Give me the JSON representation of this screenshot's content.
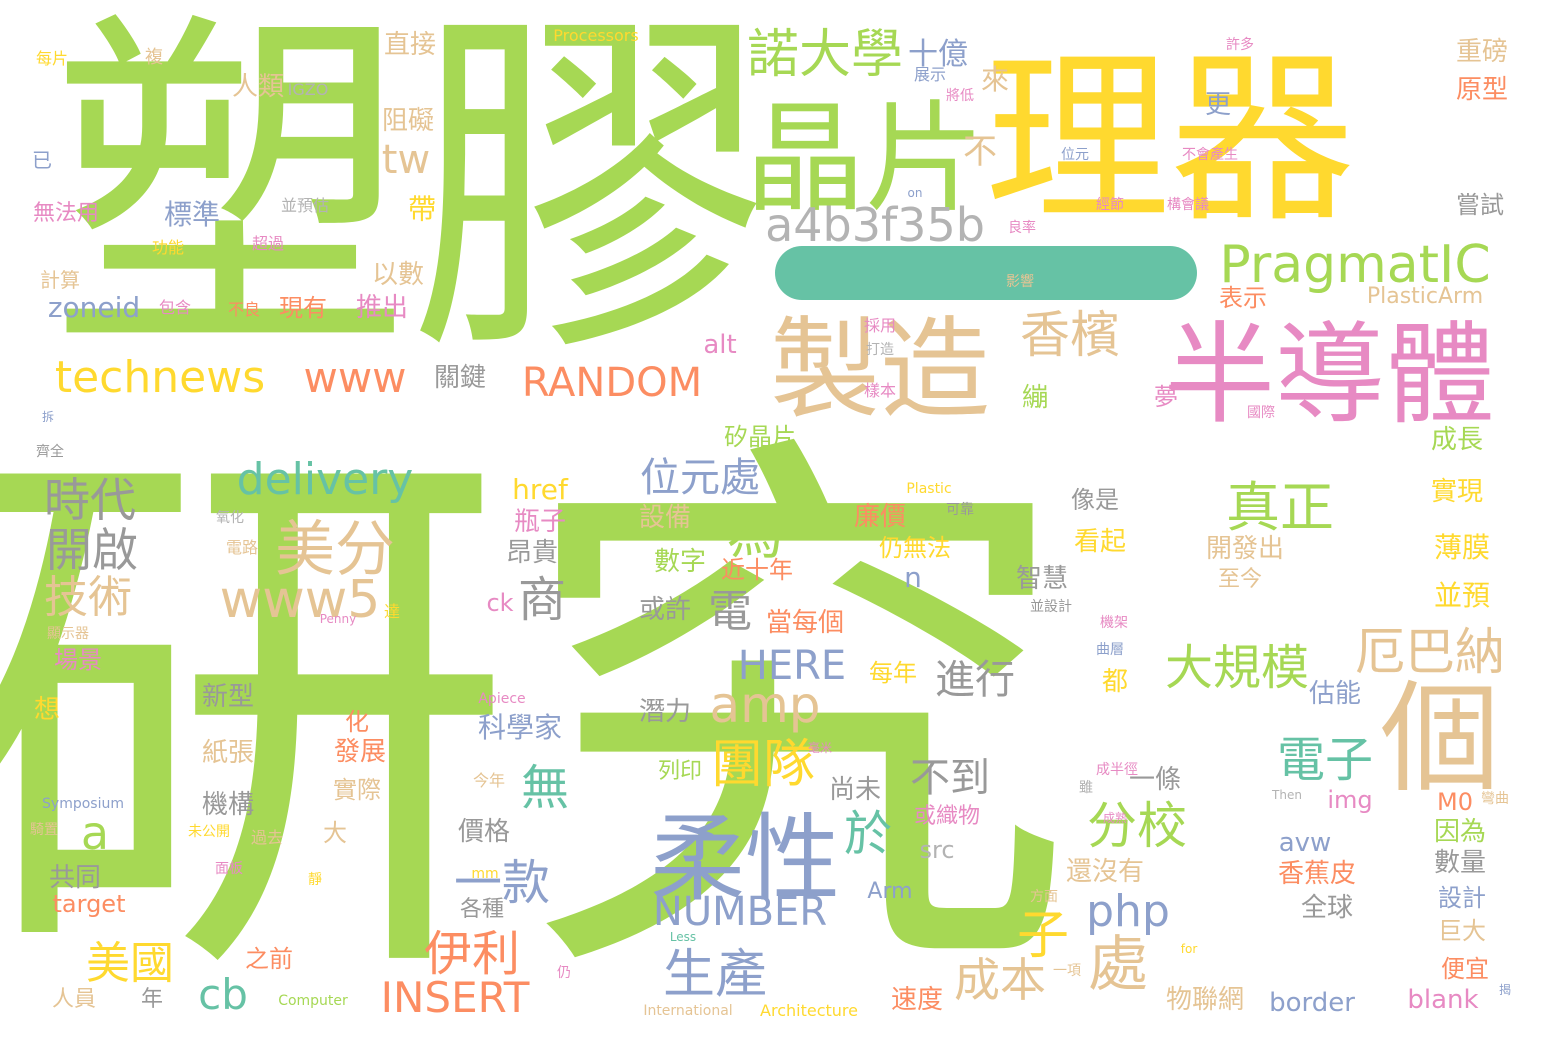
{
  "colors": {
    "background": "#ffffff",
    "palette": [
      "#a6d854",
      "#ffd92f",
      "#e5c494",
      "#e78ac3",
      "#8da0cb",
      "#66c2a5",
      "#fc8d62",
      "#b3b3b3",
      "#999999"
    ]
  },
  "words": [
    {
      "text": "研究",
      "color": "#a6d854"
    },
    {
      "text": "塑膠",
      "color": "#a6d854"
    },
    {
      "text": "理器",
      "color": "#ffd92f"
    },
    {
      "text": "晶片",
      "color": "#a6d854"
    },
    {
      "text": "半導體",
      "color": "#e78ac3"
    },
    {
      "text": "製造",
      "color": "#e5c494"
    },
    {
      "text": "柔性",
      "color": "#8da0cb"
    },
    {
      "text": "個",
      "color": "#e5c494"
    },
    {
      "text": "a4b3f35b",
      "color": "#b3b3b3"
    },
    {
      "text": "PragmatIC",
      "color": "#a6d854"
    },
    {
      "text": "諾大學",
      "color": "#a6d854"
    },
    {
      "text": "technews",
      "color": "#ffd92f"
    },
    {
      "text": "www",
      "color": "#fc8d62"
    },
    {
      "text": "RANDOM",
      "color": "#fc8d62"
    },
    {
      "text": "香檳",
      "color": "#e5c494"
    },
    {
      "text": "delivery",
      "color": "#66c2a5"
    },
    {
      "text": "美分",
      "color": "#e5c494"
    },
    {
      "text": "www5",
      "color": "#e5c494"
    },
    {
      "text": "時代",
      "color": "#999999"
    },
    {
      "text": "開啟",
      "color": "#999999"
    },
    {
      "text": "技術",
      "color": "#e5c494"
    },
    {
      "text": "位元處",
      "color": "#8da0cb"
    },
    {
      "text": "為",
      "color": "#a6d854"
    },
    {
      "text": "商",
      "color": "#999999"
    },
    {
      "text": "電",
      "color": "#999999"
    },
    {
      "text": "amp",
      "color": "#e5c494"
    },
    {
      "text": "真正",
      "color": "#a6d854"
    },
    {
      "text": "厄巴納",
      "color": "#e5c494"
    },
    {
      "text": "大規模",
      "color": "#a6d854"
    },
    {
      "text": "團隊",
      "color": "#ffd92f"
    },
    {
      "text": "HERE",
      "color": "#8da0cb"
    },
    {
      "text": "進行",
      "color": "#999999"
    },
    {
      "text": "不到",
      "color": "#999999"
    },
    {
      "text": "電子",
      "color": "#66c2a5"
    },
    {
      "text": "分校",
      "color": "#a6d854"
    },
    {
      "text": "於",
      "color": "#66c2a5"
    },
    {
      "text": "一款",
      "color": "#8da0cb"
    },
    {
      "text": "無",
      "color": "#66c2a5"
    },
    {
      "text": "a",
      "color": "#a6d854"
    },
    {
      "text": "NUMBER",
      "color": "#8da0cb"
    },
    {
      "text": "php",
      "color": "#8da0cb"
    },
    {
      "text": "處",
      "color": "#e5c494"
    },
    {
      "text": "子",
      "color": "#ffd92f"
    },
    {
      "text": "伊利",
      "color": "#fc8d62"
    },
    {
      "text": "生產",
      "color": "#8da0cb"
    },
    {
      "text": "INSERT",
      "color": "#fc8d62"
    },
    {
      "text": "美國",
      "color": "#ffd92f"
    },
    {
      "text": "cb",
      "color": "#66c2a5"
    },
    {
      "text": "成本",
      "color": "#e5c494"
    },
    {
      "text": "tw",
      "color": "#e5c494"
    },
    {
      "text": "不",
      "color": "#e5c494"
    },
    {
      "text": "zoneid",
      "color": "#8da0cb"
    },
    {
      "text": "十億",
      "color": "#8da0cb"
    },
    {
      "text": "標準",
      "color": "#8da0cb"
    },
    {
      "text": "人類",
      "color": "#e5c494"
    },
    {
      "text": "阻礙",
      "color": "#e5c494"
    },
    {
      "text": "直接",
      "color": "#e5c494"
    },
    {
      "text": "來",
      "color": "#e5c494"
    },
    {
      "text": "更",
      "color": "#8da0cb"
    },
    {
      "text": "以數",
      "color": "#e5c494"
    },
    {
      "text": "帶",
      "color": "#ffd92f"
    },
    {
      "text": "推出",
      "color": "#e78ac3"
    },
    {
      "text": "現有",
      "color": "#fc8d62"
    },
    {
      "text": "重磅",
      "color": "#e5c494"
    },
    {
      "text": "原型",
      "color": "#fc8d62"
    },
    {
      "text": "嘗試",
      "color": "#999999"
    },
    {
      "text": "表示",
      "color": "#fc8d62"
    },
    {
      "text": "PlasticArm",
      "color": "#e5c494"
    },
    {
      "text": "alt",
      "color": "#e78ac3"
    },
    {
      "text": "關鍵",
      "color": "#999999"
    },
    {
      "text": "繃",
      "color": "#a6d854"
    },
    {
      "text": "夢",
      "color": "#e78ac3"
    },
    {
      "text": "矽晶片",
      "color": "#a6d854"
    },
    {
      "text": "成長",
      "color": "#a6d854"
    },
    {
      "text": "實現",
      "color": "#ffd92f"
    },
    {
      "text": "薄膜",
      "color": "#ffd92f"
    },
    {
      "text": "並預",
      "color": "#ffd92f"
    },
    {
      "text": "href",
      "color": "#ffd92f"
    },
    {
      "text": "瓶子",
      "color": "#e78ac3"
    },
    {
      "text": "昂貴",
      "color": "#999999"
    },
    {
      "text": "設備",
      "color": "#e5c494"
    },
    {
      "text": "數字",
      "color": "#a6d854"
    },
    {
      "text": "近十年",
      "color": "#fc8d62"
    },
    {
      "text": "或許",
      "color": "#999999"
    },
    {
      "text": "ck",
      "color": "#e78ac3"
    },
    {
      "text": "當每個",
      "color": "#fc8d62"
    },
    {
      "text": "廉價",
      "color": "#fc8d62"
    },
    {
      "text": "仍無法",
      "color": "#ffd92f"
    },
    {
      "text": "看起",
      "color": "#ffd92f"
    },
    {
      "text": "智慧",
      "color": "#999999"
    },
    {
      "text": "開發出",
      "color": "#e5c494"
    },
    {
      "text": "至今",
      "color": "#e5c494"
    },
    {
      "text": "像是",
      "color": "#999999"
    },
    {
      "text": "n",
      "color": "#8da0cb"
    },
    {
      "text": "每年",
      "color": "#ffd92f"
    },
    {
      "text": "都",
      "color": "#ffd92f"
    },
    {
      "text": "估能",
      "color": "#8da0cb"
    },
    {
      "text": "科學家",
      "color": "#8da0cb"
    },
    {
      "text": "潛力",
      "color": "#999999"
    },
    {
      "text": "新型",
      "color": "#999999"
    },
    {
      "text": "紙張",
      "color": "#e5c494"
    },
    {
      "text": "機構",
      "color": "#999999"
    },
    {
      "text": "化",
      "color": "#fc8d62"
    },
    {
      "text": "發展",
      "color": "#fc8d62"
    },
    {
      "text": "實際",
      "color": "#e5c494"
    },
    {
      "text": "大",
      "color": "#e5c494"
    },
    {
      "text": "價格",
      "color": "#999999"
    },
    {
      "text": "尚未",
      "color": "#999999"
    },
    {
      "text": "一條",
      "color": "#999999"
    },
    {
      "text": "img",
      "color": "#e78ac3"
    },
    {
      "text": "M0",
      "color": "#fc8d62"
    },
    {
      "text": "因為",
      "color": "#a6d854"
    },
    {
      "text": "數量",
      "color": "#999999"
    },
    {
      "text": "設計",
      "color": "#8da0cb"
    },
    {
      "text": "巨大",
      "color": "#e5c494"
    },
    {
      "text": "便宜",
      "color": "#fc8d62"
    },
    {
      "text": "blank",
      "color": "#e78ac3"
    },
    {
      "text": "avw",
      "color": "#8da0cb"
    },
    {
      "text": "還沒有",
      "color": "#e5c494"
    },
    {
      "text": "香蕉皮",
      "color": "#fc8d62"
    },
    {
      "text": "全球",
      "color": "#999999"
    },
    {
      "text": "border",
      "color": "#8da0cb"
    },
    {
      "text": "物聯網",
      "color": "#e5c494"
    },
    {
      "text": "速度",
      "color": "#fc8d62"
    },
    {
      "text": "或織物",
      "color": "#e78ac3"
    },
    {
      "text": "src",
      "color": "#b3b3b3"
    },
    {
      "text": "Arm",
      "color": "#8da0cb"
    },
    {
      "text": "列印",
      "color": "#a6d854"
    },
    {
      "text": "各種",
      "color": "#999999"
    },
    {
      "text": "共同",
      "color": "#999999"
    },
    {
      "text": "target",
      "color": "#fc8d62"
    },
    {
      "text": "之前",
      "color": "#fc8d62"
    },
    {
      "text": "年",
      "color": "#999999"
    },
    {
      "text": "人員",
      "color": "#e5c494"
    },
    {
      "text": "場景",
      "color": "#e78ac3"
    },
    {
      "text": "想",
      "color": "#ffd92f"
    },
    {
      "text": "無法用",
      "color": "#e78ac3"
    },
    {
      "text": "計算",
      "color": "#e5c494"
    },
    {
      "text": "每片",
      "color": "#ffd92f"
    },
    {
      "text": "複",
      "color": "#e5c494"
    },
    {
      "text": "已",
      "color": "#8da0cb"
    },
    {
      "text": "IGZO",
      "color": "#b3b3b3"
    },
    {
      "text": "Processors",
      "color": "#ffd92f"
    },
    {
      "text": "並預估",
      "color": "#b3b3b3"
    },
    {
      "text": "功能",
      "color": "#ffd92f"
    },
    {
      "text": "超過",
      "color": "#e78ac3"
    },
    {
      "text": "包含",
      "color": "#e78ac3"
    },
    {
      "text": "不良",
      "color": "#fc8d62"
    },
    {
      "text": "展示",
      "color": "#8da0cb"
    },
    {
      "text": "將低",
      "color": "#e78ac3"
    },
    {
      "text": "許多",
      "color": "#e78ac3"
    },
    {
      "text": "位元",
      "color": "#8da0cb"
    },
    {
      "text": "不會產生",
      "color": "#e78ac3"
    },
    {
      "text": "on",
      "color": "#8da0cb"
    },
    {
      "text": "經節",
      "color": "#e78ac3"
    },
    {
      "text": "構會議",
      "color": "#e78ac3"
    },
    {
      "text": "良率",
      "color": "#e78ac3"
    },
    {
      "text": "影響",
      "color": "#e5c494"
    },
    {
      "text": "採用",
      "color": "#e78ac3"
    },
    {
      "text": "打造",
      "color": "#b3b3b3"
    },
    {
      "text": "樣本",
      "color": "#e78ac3"
    },
    {
      "text": "國際",
      "color": "#e78ac3"
    },
    {
      "text": "Plastic",
      "color": "#ffd92f"
    },
    {
      "text": "可靠",
      "color": "#999999"
    },
    {
      "text": "並設計",
      "color": "#999999"
    },
    {
      "text": "機架",
      "color": "#e78ac3"
    },
    {
      "text": "曲層",
      "color": "#8da0cb"
    },
    {
      "text": "拆",
      "color": "#8da0cb"
    },
    {
      "text": "齊全",
      "color": "#999999"
    },
    {
      "text": "氧化",
      "color": "#b3b3b3"
    },
    {
      "text": "電路",
      "color": "#e5c494"
    },
    {
      "text": "達",
      "color": "#ffd92f"
    },
    {
      "text": "Penny",
      "color": "#e78ac3"
    },
    {
      "text": "顯示器",
      "color": "#e5c494"
    },
    {
      "text": "Apiece",
      "color": "#e78ac3"
    },
    {
      "text": "毫米",
      "color": "#e78ac3"
    },
    {
      "text": "今年",
      "color": "#e5c494"
    },
    {
      "text": "成半徑",
      "color": "#e78ac3"
    },
    {
      "text": "雖",
      "color": "#b3b3b3"
    },
    {
      "text": "Then",
      "color": "#b3b3b3"
    },
    {
      "text": "彎曲",
      "color": "#e5c494"
    },
    {
      "text": "成熟",
      "color": "#e78ac3"
    },
    {
      "text": "Symposium",
      "color": "#8da0cb"
    },
    {
      "text": "騎置",
      "color": "#e5c494"
    },
    {
      "text": "未公開",
      "color": "#ffd92f"
    },
    {
      "text": "過去",
      "color": "#e5c494"
    },
    {
      "text": "面板",
      "color": "#e78ac3"
    },
    {
      "text": "mm",
      "color": "#ffd92f"
    },
    {
      "text": "靜",
      "color": "#ffd92f"
    },
    {
      "text": "方面",
      "color": "#e5c494"
    },
    {
      "text": "Less",
      "color": "#66c2a5"
    },
    {
      "text": "for",
      "color": "#ffd92f"
    },
    {
      "text": "Computer",
      "color": "#a6d854"
    },
    {
      "text": "仍",
      "color": "#e78ac3"
    },
    {
      "text": "一項",
      "color": "#e5c494"
    },
    {
      "text": "International",
      "color": "#e5c494"
    },
    {
      "text": "Architecture",
      "color": "#ffd92f"
    },
    {
      "text": "揭",
      "color": "#8da0cb"
    }
  ]
}
